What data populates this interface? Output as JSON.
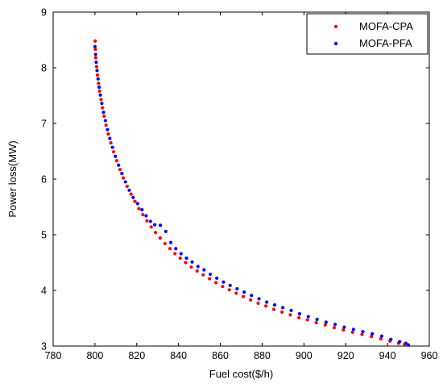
{
  "chart_data": {
    "type": "scatter",
    "xlabel": "Fuel cost($/h)",
    "ylabel": "Power loss(MW)",
    "xlim": [
      780,
      960
    ],
    "ylim": [
      3,
      9
    ],
    "xticks": [
      780,
      800,
      820,
      840,
      860,
      880,
      900,
      920,
      940,
      960
    ],
    "yticks": [
      3,
      4,
      5,
      6,
      7,
      8,
      9
    ],
    "grid": false,
    "legend_position": "top-right",
    "series": [
      {
        "name": "MOFA-CPA",
        "color": "#ff0000",
        "points": [
          [
            800.1,
            8.48
          ],
          [
            800.2,
            8.33
          ],
          [
            800.4,
            8.18
          ],
          [
            800.8,
            8.02
          ],
          [
            801.2,
            7.87
          ],
          [
            801.7,
            7.72
          ],
          [
            802.2,
            7.58
          ],
          [
            802.9,
            7.43
          ],
          [
            803.6,
            7.28
          ],
          [
            804.4,
            7.13
          ],
          [
            805.3,
            6.97
          ],
          [
            806.4,
            6.81
          ],
          [
            807.6,
            6.65
          ],
          [
            808.9,
            6.49
          ],
          [
            810.4,
            6.33
          ],
          [
            812.0,
            6.17
          ],
          [
            813.6,
            6.02
          ],
          [
            815.4,
            5.87
          ],
          [
            817.3,
            5.73
          ],
          [
            819.1,
            5.6
          ],
          [
            821.0,
            5.47
          ],
          [
            822.9,
            5.36
          ],
          [
            824.9,
            5.25
          ],
          [
            826.9,
            5.14
          ],
          [
            829.0,
            5.04
          ],
          [
            831.2,
            4.94
          ],
          [
            833.5,
            4.84
          ],
          [
            835.9,
            4.75
          ],
          [
            838.3,
            4.66
          ],
          [
            840.8,
            4.58
          ],
          [
            843.4,
            4.5
          ],
          [
            846.1,
            4.42
          ],
          [
            848.9,
            4.35
          ],
          [
            851.8,
            4.28
          ],
          [
            854.8,
            4.21
          ],
          [
            857.9,
            4.14
          ],
          [
            861.1,
            4.07
          ],
          [
            864.3,
            4.01
          ],
          [
            867.6,
            3.95
          ],
          [
            871.0,
            3.89
          ],
          [
            874.5,
            3.83
          ],
          [
            878.1,
            3.77
          ],
          [
            881.8,
            3.72
          ],
          [
            885.6,
            3.66
          ],
          [
            889.5,
            3.61
          ],
          [
            893.5,
            3.56
          ],
          [
            897.6,
            3.51
          ],
          [
            901.7,
            3.47
          ],
          [
            905.9,
            3.42
          ],
          [
            910.2,
            3.38
          ],
          [
            914.5,
            3.33
          ],
          [
            918.9,
            3.29
          ],
          [
            923.3,
            3.25
          ],
          [
            927.8,
            3.21
          ],
          [
            932.3,
            3.17
          ],
          [
            936.8,
            3.13
          ],
          [
            941.2,
            3.09
          ],
          [
            945.3,
            3.05
          ],
          [
            948.2,
            3.03
          ]
        ]
      },
      {
        "name": "MOFA-PFA",
        "color": "#0000ff",
        "points": [
          [
            800.0,
            8.38
          ],
          [
            800.3,
            8.24
          ],
          [
            800.6,
            8.1
          ],
          [
            801.0,
            7.95
          ],
          [
            801.5,
            7.8
          ],
          [
            802.0,
            7.65
          ],
          [
            802.6,
            7.51
          ],
          [
            803.3,
            7.36
          ],
          [
            804.1,
            7.2
          ],
          [
            805.0,
            7.05
          ],
          [
            806.0,
            6.89
          ],
          [
            807.1,
            6.73
          ],
          [
            808.4,
            6.57
          ],
          [
            809.8,
            6.41
          ],
          [
            811.3,
            6.25
          ],
          [
            812.9,
            6.1
          ],
          [
            814.6,
            5.95
          ],
          [
            816.4,
            5.8
          ],
          [
            818.3,
            5.67
          ],
          [
            820.4,
            5.56
          ],
          [
            822.5,
            5.45
          ],
          [
            824.5,
            5.34
          ],
          [
            826.6,
            5.24
          ],
          [
            828.6,
            5.18
          ],
          [
            831.3,
            5.17
          ],
          [
            833.9,
            5.06
          ],
          [
            836.3,
            4.86
          ],
          [
            838.7,
            4.75
          ],
          [
            841.2,
            4.66
          ],
          [
            843.8,
            4.58
          ],
          [
            846.5,
            4.51
          ],
          [
            849.3,
            4.43
          ],
          [
            852.2,
            4.37
          ],
          [
            855.2,
            4.29
          ],
          [
            858.3,
            4.22
          ],
          [
            861.5,
            4.15
          ],
          [
            864.7,
            4.09
          ],
          [
            868.0,
            4.03
          ],
          [
            871.4,
            3.97
          ],
          [
            874.9,
            3.91
          ],
          [
            878.5,
            3.85
          ],
          [
            882.2,
            3.79
          ],
          [
            886.0,
            3.74
          ],
          [
            889.9,
            3.69
          ],
          [
            893.9,
            3.64
          ],
          [
            897.9,
            3.58
          ],
          [
            902.1,
            3.53
          ],
          [
            906.3,
            3.48
          ],
          [
            910.6,
            3.43
          ],
          [
            914.9,
            3.39
          ],
          [
            919.3,
            3.34
          ],
          [
            923.7,
            3.3
          ],
          [
            928.2,
            3.26
          ],
          [
            932.7,
            3.22
          ],
          [
            937.2,
            3.18
          ],
          [
            941.6,
            3.12
          ],
          [
            945.8,
            3.08
          ],
          [
            948.8,
            3.05
          ],
          [
            950.0,
            3.02
          ]
        ]
      }
    ]
  }
}
